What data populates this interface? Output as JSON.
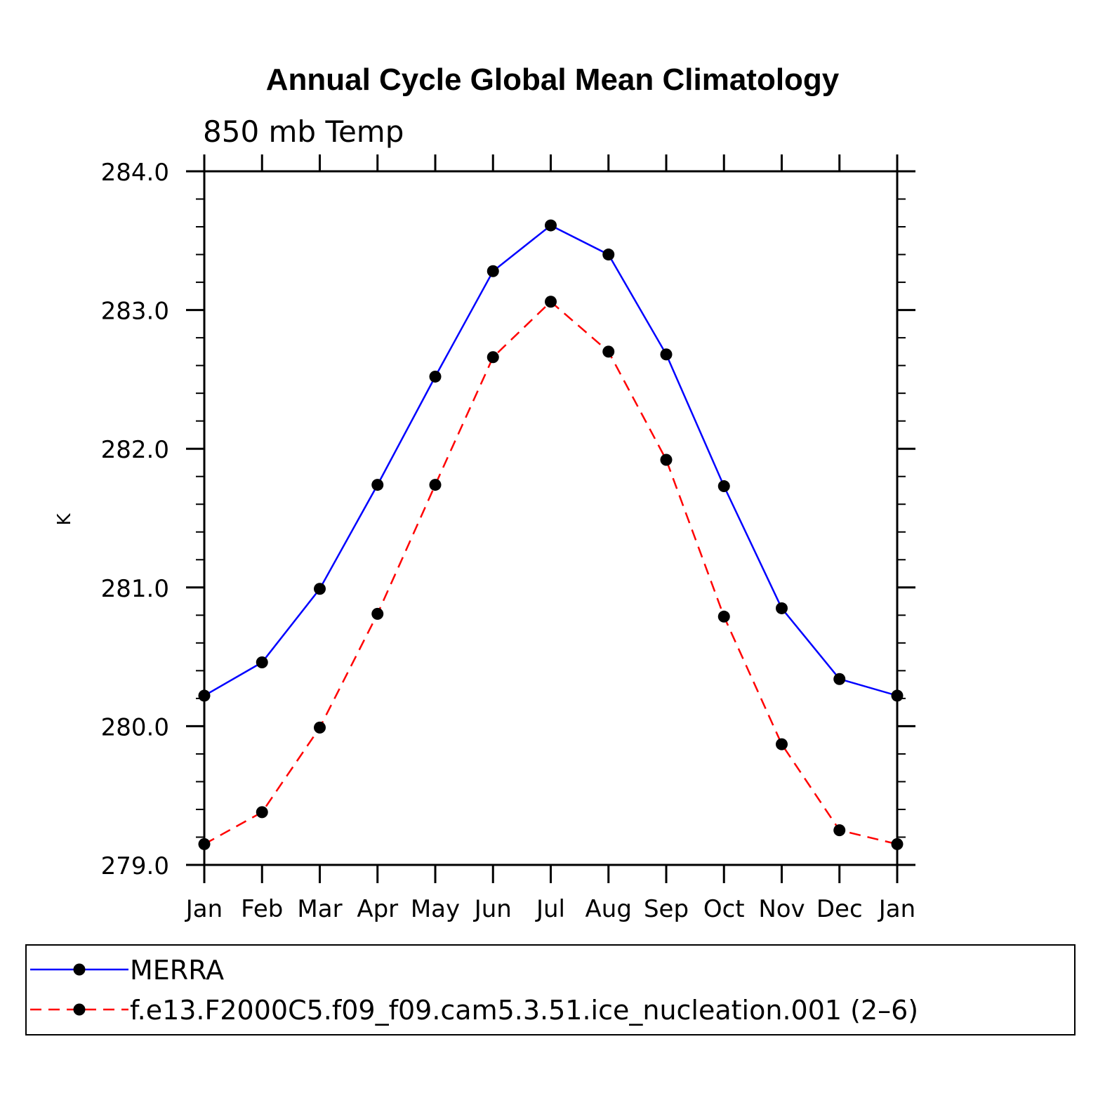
{
  "chart_data": {
    "type": "line",
    "title": "Annual Cycle Global Mean Climatology",
    "subtitle": "850 mb Temp",
    "xlabel": "",
    "ylabel": "K",
    "categories": [
      "Jan",
      "Feb",
      "Mar",
      "Apr",
      "May",
      "Jun",
      "Jul",
      "Aug",
      "Sep",
      "Oct",
      "Nov",
      "Dec",
      "Jan"
    ],
    "ylim": [
      279.0,
      284.0
    ],
    "yticks": [
      "279.0",
      "280.0",
      "281.0",
      "282.0",
      "283.0",
      "284.0"
    ],
    "y_minor_step": 0.2,
    "grid": false,
    "legend_position": "bottom",
    "series": [
      {
        "name": "MERRA",
        "color": "#0000ff",
        "line_style": "solid",
        "marker": "filled-circle",
        "values": [
          280.22,
          280.46,
          280.99,
          281.74,
          282.52,
          283.28,
          283.61,
          283.4,
          282.68,
          281.73,
          280.85,
          280.34,
          280.22
        ]
      },
      {
        "name": "f.e13.F2000C5.f09_f09.cam5.3.51.ice_nucleation.001 (2–6)",
        "color": "#ff0000",
        "line_style": "dashed",
        "marker": "filled-circle",
        "values": [
          279.15,
          279.38,
          279.99,
          280.81,
          281.74,
          282.66,
          283.06,
          282.7,
          281.92,
          280.79,
          279.87,
          279.25,
          279.15
        ]
      }
    ]
  }
}
